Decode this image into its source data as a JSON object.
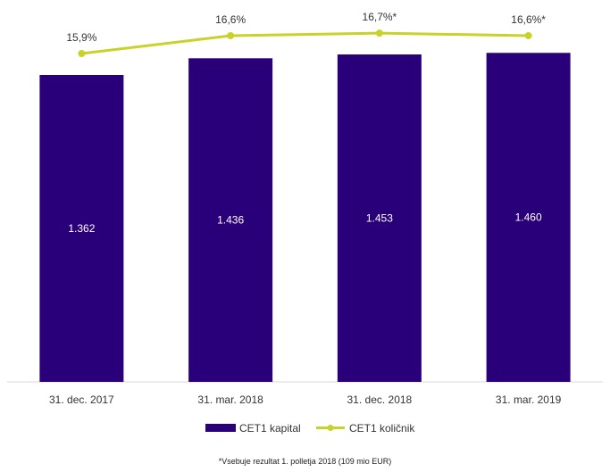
{
  "chart_data": {
    "type": "bar",
    "categories": [
      "31. dec. 2017",
      "31. mar. 2018",
      "31. dec. 2018",
      "31. mar. 2019"
    ],
    "series": [
      {
        "name": "CET1 kapital",
        "type": "bar",
        "values": [
          1362,
          1436,
          1453,
          1460
        ],
        "labels": [
          "1.362",
          "1.436",
          "1.453",
          "1.460"
        ],
        "color": "#2A007A"
      },
      {
        "name": "CET1 količnik",
        "type": "line",
        "values": [
          15.9,
          16.6,
          16.7,
          16.6
        ],
        "labels": [
          "15,9%",
          "16,6%",
          "16,7%*",
          "16,6%*"
        ],
        "color": "#C9D22B"
      }
    ],
    "legend_position": "bottom",
    "grid": false
  },
  "footnote": "*Vsebuje rezultat 1. polletja 2018 (109 mio EUR)"
}
